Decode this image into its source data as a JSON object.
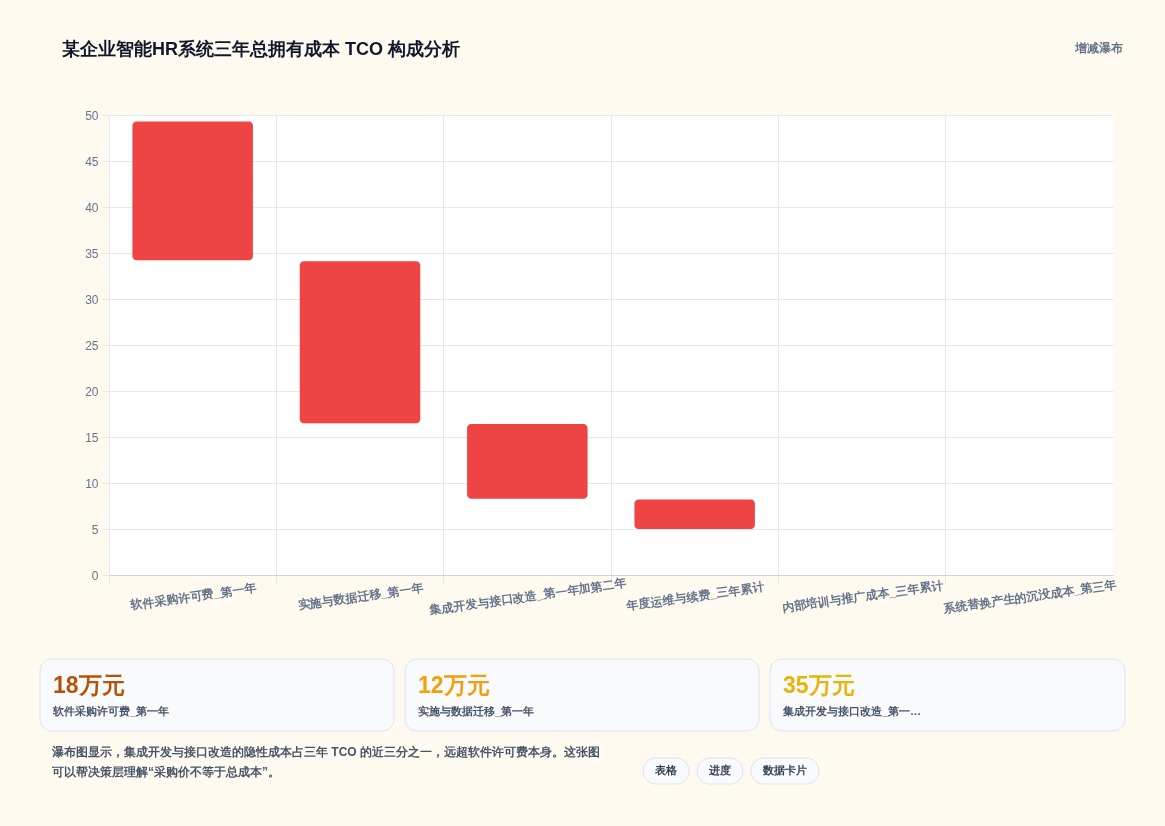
{
  "chart_data": [
    {
      "type": "bar",
      "title": "某企业智能HR系统三年总拥有成本 TCO 构成分析",
      "categories": [
        "软件采购许可费_第一年",
        "实施与数据迁移_第一年",
        "集成开发与接口改造_第一年加第二年",
        "年度运维与续费_三年累计",
        "内部培训与推广成本_三年累计",
        "系统替换产生的沉没成本_第三年"
      ],
      "base": [
        34.2,
        16.5,
        8.3,
        5.0,
        null,
        null
      ],
      "values": [
        15.1,
        17.6,
        8.1,
        3.2,
        null,
        null
      ],
      "color": "#ef4444",
      "ylim": [
        0,
        50
      ],
      "yticks": [
        0,
        5,
        10,
        15,
        20,
        25,
        30,
        35,
        40,
        45,
        50
      ],
      "grid": true,
      "annotations": [
        "增减瀑布",
        "瀑布图显示，集成开发与接口改造的隐性成本占三年 TCO 的近三分之一，远超软件许可费本身。这张图可以帮决策层理解“采购价不等于总成本”。",
        "表格",
        "进度",
        "数据卡片"
      ]
    },
    {
      "type": "other",
      "title": "18万元",
      "subtitle": "软件采购许可费_第一年",
      "color": "#b45309"
    },
    {
      "type": "other",
      "title": "12万元",
      "subtitle": "实施与数据迁移_第一年",
      "color": "#f59e0b"
    },
    {
      "type": "other",
      "title": "35万元",
      "subtitle": "集成开发与接口改造_第一…",
      "color": "#eab308"
    }
  ]
}
